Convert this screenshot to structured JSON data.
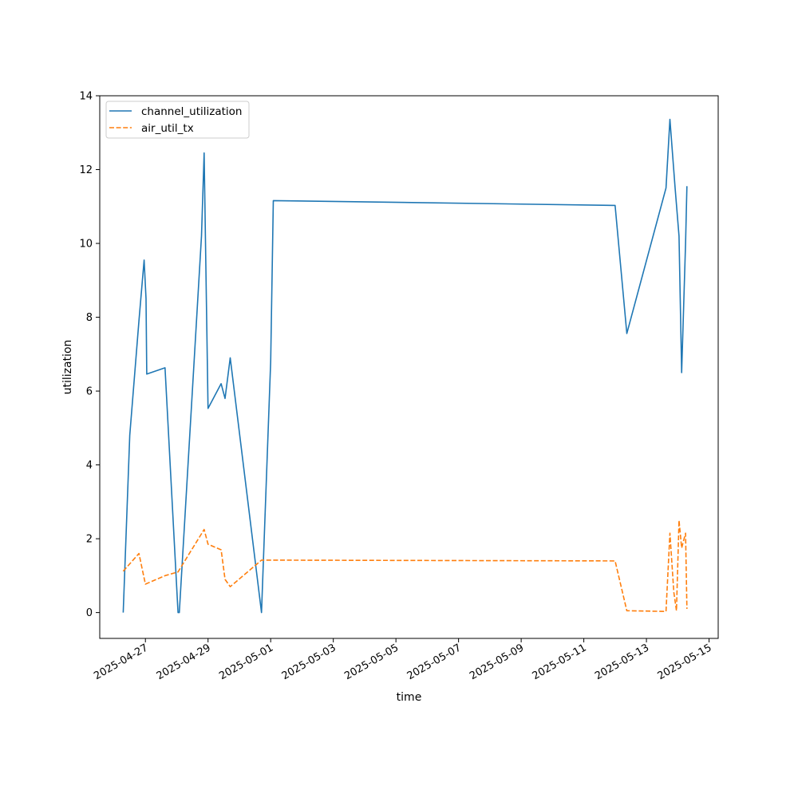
{
  "chart_data": {
    "type": "line",
    "title": "",
    "xlabel": "time",
    "ylabel": "utilization",
    "x_scale": "date",
    "xlim": [
      "2025-04-25T13:00",
      "2025-05-15T07:00"
    ],
    "ylim": [
      -0.7,
      14
    ],
    "x_ticks": [
      "2025-04-27",
      "2025-04-29",
      "2025-05-01",
      "2025-05-03",
      "2025-05-05",
      "2025-05-07",
      "2025-05-09",
      "2025-05-11",
      "2025-05-13",
      "2025-05-15"
    ],
    "y_ticks": [
      0,
      2,
      4,
      6,
      8,
      10,
      12,
      14
    ],
    "grid": false,
    "legend_position": "top-left",
    "series": [
      {
        "name": "channel_utilization",
        "color": "#1f77b4",
        "dash": "solid",
        "points": [
          [
            "2025-04-26T07:00",
            0.0
          ],
          [
            "2025-04-26T12:00",
            4.8
          ],
          [
            "2025-04-26T19:00",
            7.9
          ],
          [
            "2025-04-26T23:00",
            9.55
          ],
          [
            "2025-04-27T00:30",
            8.5
          ],
          [
            "2025-04-27T01:00",
            6.46
          ],
          [
            "2025-04-27T15:00",
            6.63
          ],
          [
            "2025-04-28T01:00",
            0.0
          ],
          [
            "2025-04-28T02:00",
            0.0
          ],
          [
            "2025-04-28T19:00",
            10.2
          ],
          [
            "2025-04-28T21:00",
            12.45
          ],
          [
            "2025-04-29T00:00",
            5.53
          ],
          [
            "2025-04-29T10:00",
            6.2
          ],
          [
            "2025-04-29T13:00",
            5.8
          ],
          [
            "2025-04-29T17:00",
            6.9
          ],
          [
            "2025-04-30T17:00",
            0.0
          ],
          [
            "2025-05-01T00:00",
            6.8
          ],
          [
            "2025-05-01T02:00",
            11.16
          ],
          [
            "2025-05-12T00:00",
            11.03
          ],
          [
            "2025-05-12T09:00",
            7.56
          ],
          [
            "2025-05-13T15:00",
            11.5
          ],
          [
            "2025-05-13T18:00",
            13.36
          ],
          [
            "2025-05-13T22:00",
            11.5
          ],
          [
            "2025-05-14T01:00",
            10.2
          ],
          [
            "2025-05-14T03:00",
            6.5
          ],
          [
            "2025-05-14T06:00",
            10.0
          ],
          [
            "2025-05-14T07:00",
            11.55
          ]
        ]
      },
      {
        "name": "air_util_tx",
        "color": "#ff7f0e",
        "dash": "dashed",
        "points": [
          [
            "2025-04-26T07:00",
            1.12
          ],
          [
            "2025-04-26T19:00",
            1.6
          ],
          [
            "2025-04-27T00:00",
            0.77
          ],
          [
            "2025-04-27T15:00",
            1.0
          ],
          [
            "2025-04-28T01:00",
            1.1
          ],
          [
            "2025-04-28T21:00",
            2.25
          ],
          [
            "2025-04-29T00:00",
            1.85
          ],
          [
            "2025-04-29T10:00",
            1.7
          ],
          [
            "2025-04-29T13:00",
            0.9
          ],
          [
            "2025-04-29T17:00",
            0.7
          ],
          [
            "2025-04-30T17:00",
            1.42
          ],
          [
            "2025-05-12T00:00",
            1.4
          ],
          [
            "2025-05-12T09:00",
            0.05
          ],
          [
            "2025-05-13T15:00",
            0.03
          ],
          [
            "2025-05-13T18:00",
            2.15
          ],
          [
            "2025-05-13T21:00",
            0.55
          ],
          [
            "2025-05-13T23:00",
            0.05
          ],
          [
            "2025-05-14T01:00",
            2.5
          ],
          [
            "2025-05-14T03:00",
            1.75
          ],
          [
            "2025-05-14T06:00",
            2.15
          ],
          [
            "2025-05-14T07:00",
            0.1
          ]
        ]
      }
    ]
  }
}
